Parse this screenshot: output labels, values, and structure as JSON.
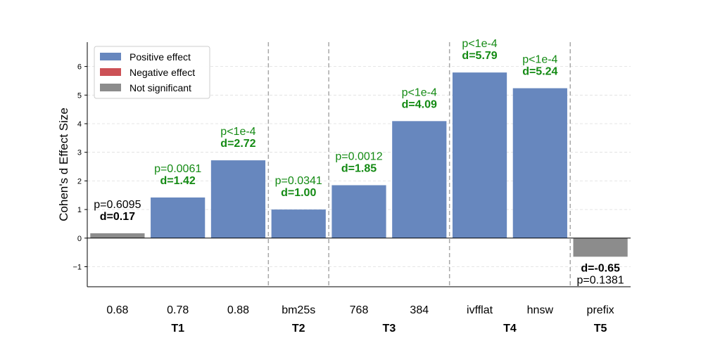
{
  "chart_data": {
    "type": "bar",
    "ylabel": "Cohen's d Effect Size",
    "ylim": [
      -1.7,
      6.85
    ],
    "yticks": [
      -1,
      0,
      1,
      2,
      3,
      4,
      5,
      6
    ],
    "grid": "y-dashed",
    "legend_position": "top-left",
    "legend": [
      {
        "label": "Positive effect",
        "color": "#6787be"
      },
      {
        "label": "Negative effect",
        "color": "#cc5156"
      },
      {
        "label": "Not significant",
        "color": "#8c8c8c"
      }
    ],
    "categories": [
      "0.68",
      "0.78",
      "0.88",
      "bm25s",
      "768",
      "384",
      "ivfflat",
      "hnsw",
      "prefix"
    ],
    "values": [
      0.17,
      1.42,
      2.72,
      1.0,
      1.85,
      4.09,
      5.79,
      5.24,
      -0.65
    ],
    "status": [
      "not_significant",
      "positive",
      "positive",
      "positive",
      "positive",
      "positive",
      "positive",
      "positive",
      "not_significant"
    ],
    "p_labels": [
      "p=0.6095",
      "p=0.0061",
      "p<1e-4",
      "p=0.0341",
      "p=0.0012",
      "p<1e-4",
      "p<1e-4",
      "p<1e-4",
      "p=0.1381"
    ],
    "d_labels": [
      "d=0.17",
      "d=1.42",
      "d=2.72",
      "d=1.00",
      "d=1.85",
      "d=4.09",
      "d=5.79",
      "d=5.24",
      "d=-0.65"
    ],
    "groups": [
      {
        "label": "T1",
        "start": 0,
        "end": 2
      },
      {
        "label": "T2",
        "start": 3,
        "end": 3
      },
      {
        "label": "T3",
        "start": 4,
        "end": 5
      },
      {
        "label": "T4",
        "start": 6,
        "end": 7
      },
      {
        "label": "T5",
        "start": 8,
        "end": 8
      }
    ],
    "colors": {
      "positive": "#6787be",
      "negative": "#cc5156",
      "not_significant": "#8c8c8c",
      "significant_label": "#138a13",
      "ns_label": "#000000",
      "separator": "#a8a8a8"
    }
  }
}
